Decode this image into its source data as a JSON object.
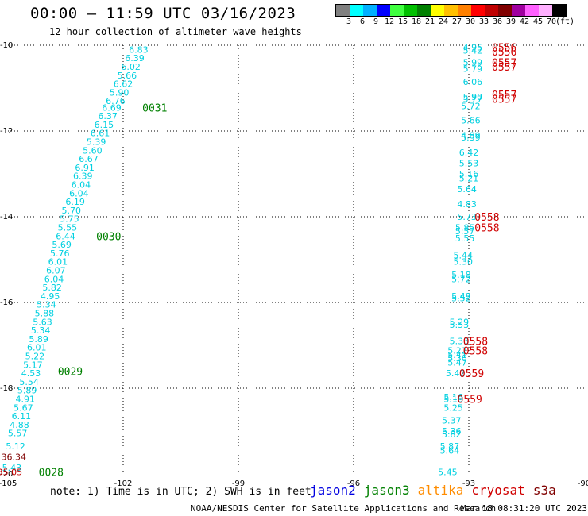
{
  "header": {
    "title": "00:00 — 11:59 UTC 03/16/2023",
    "subtitle": "12 hour collection of altimeter wave heights"
  },
  "legend": {
    "colors": [
      "#808080",
      "#00ffff",
      "#00b0ff",
      "#0000ff",
      "#40ff40",
      "#00c000",
      "#008000",
      "#ffff00",
      "#ffc000",
      "#ff8000",
      "#ff0000",
      "#c00000",
      "#800000",
      "#a000a0",
      "#ff60ff",
      "#ffb0ff",
      "#000000"
    ],
    "labels": [
      "3",
      "6",
      "9",
      "12",
      "15",
      "18",
      "21",
      "24",
      "27",
      "30",
      "33",
      "36",
      "39",
      "42",
      "45",
      "70",
      "(ft)"
    ]
  },
  "footer": {
    "note": "note: 1) Time is in UTC; 2) SWH is in feet",
    "satellites": [
      {
        "name": "jason2",
        "color": "#0000e0"
      },
      {
        "name": "jason3",
        "color": "#008000"
      },
      {
        "name": "altika",
        "color": "#ff8c00"
      },
      {
        "name": "cryosat",
        "color": "#d00000"
      },
      {
        "name": "s3a",
        "color": "#800000"
      }
    ],
    "credit": "NOAA/NESDIS Center for Satellite Applications and Research",
    "timestamp": "Mar 18 08:31:20 UTC 2023"
  },
  "chart_data": {
    "type": "scatter",
    "xlim": [
      -105,
      -90
    ],
    "ylim": [
      -20,
      -10
    ],
    "x_ticks": [
      -105,
      -102,
      -99,
      -96,
      -93,
      -90
    ],
    "x_tick_labels": [
      "-105",
      "-102",
      "-99",
      "-96",
      "-93",
      "-90"
    ],
    "y_ticks": [
      -10,
      -12,
      -14,
      -16,
      -18,
      -20
    ],
    "y_tick_labels": [
      "-10",
      "-12",
      "-14",
      "-16",
      "-18",
      "-20"
    ],
    "grid": true,
    "swh_points": [
      {
        "lon": -101.6,
        "lat": -10.1,
        "text": "6.83",
        "color": "#00d0e0"
      },
      {
        "lon": -101.7,
        "lat": -10.3,
        "text": "6.39",
        "color": "#00d0e0"
      },
      {
        "lon": -101.8,
        "lat": -10.5,
        "text": "6.02",
        "color": "#00d0e0"
      },
      {
        "lon": -101.9,
        "lat": -10.7,
        "text": "5.66",
        "color": "#00d0e0"
      },
      {
        "lon": -102.0,
        "lat": -10.9,
        "text": "6.62",
        "color": "#00d0e0"
      },
      {
        "lon": -102.1,
        "lat": -11.1,
        "text": "5.90",
        "color": "#00d0e0"
      },
      {
        "lon": -102.2,
        "lat": -11.3,
        "text": "6.76",
        "color": "#00d0e0"
      },
      {
        "lon": -102.3,
        "lat": -11.45,
        "text": "6.69",
        "color": "#00d0e0"
      },
      {
        "lon": -102.4,
        "lat": -11.65,
        "text": "6.37",
        "color": "#00d0e0"
      },
      {
        "lon": -102.5,
        "lat": -11.85,
        "text": "6.15",
        "color": "#00d0e0"
      },
      {
        "lon": -102.6,
        "lat": -12.05,
        "text": "6.61",
        "color": "#00d0e0"
      },
      {
        "lon": -102.7,
        "lat": -12.25,
        "text": "5.39",
        "color": "#00d0e0"
      },
      {
        "lon": -102.8,
        "lat": -12.45,
        "text": "5.60",
        "color": "#00d0e0"
      },
      {
        "lon": -102.9,
        "lat": -12.65,
        "text": "6.67",
        "color": "#00d0e0"
      },
      {
        "lon": -103.0,
        "lat": -12.85,
        "text": "6.91",
        "color": "#00d0e0"
      },
      {
        "lon": -103.05,
        "lat": -13.05,
        "text": "6.39",
        "color": "#00d0e0"
      },
      {
        "lon": -103.1,
        "lat": -13.25,
        "text": "6.04",
        "color": "#00d0e0"
      },
      {
        "lon": -103.15,
        "lat": -13.45,
        "text": "6.04",
        "color": "#00d0e0"
      },
      {
        "lon": -103.25,
        "lat": -13.65,
        "text": "6.19",
        "color": "#00d0e0"
      },
      {
        "lon": -103.35,
        "lat": -13.85,
        "text": "5.70",
        "color": "#00d0e0"
      },
      {
        "lon": -103.4,
        "lat": -14.05,
        "text": "5.75",
        "color": "#00d0e0"
      },
      {
        "lon": -103.45,
        "lat": -14.25,
        "text": "5.55",
        "color": "#00d0e0"
      },
      {
        "lon": -103.5,
        "lat": -14.45,
        "text": "6.44",
        "color": "#00d0e0"
      },
      {
        "lon": -103.6,
        "lat": -14.65,
        "text": "5.69",
        "color": "#00d0e0"
      },
      {
        "lon": -103.65,
        "lat": -14.85,
        "text": "5.76",
        "color": "#00d0e0"
      },
      {
        "lon": -103.7,
        "lat": -15.05,
        "text": "6.01",
        "color": "#00d0e0"
      },
      {
        "lon": -103.75,
        "lat": -15.25,
        "text": "6.07",
        "color": "#00d0e0"
      },
      {
        "lon": -103.8,
        "lat": -15.45,
        "text": "6.04",
        "color": "#00d0e0"
      },
      {
        "lon": -103.85,
        "lat": -15.65,
        "text": "5.82",
        "color": "#00d0e0"
      },
      {
        "lon": -103.9,
        "lat": -15.85,
        "text": "4.95",
        "color": "#00d0e0"
      },
      {
        "lon": -104.0,
        "lat": -16.05,
        "text": "5.34",
        "color": "#00d0e0"
      },
      {
        "lon": -104.05,
        "lat": -16.25,
        "text": "5.88",
        "color": "#00d0e0"
      },
      {
        "lon": -104.1,
        "lat": -16.45,
        "text": "5.63",
        "color": "#00d0e0"
      },
      {
        "lon": -104.15,
        "lat": -16.65,
        "text": "5.34",
        "color": "#00d0e0"
      },
      {
        "lon": -104.2,
        "lat": -16.85,
        "text": "5.89",
        "color": "#00d0e0"
      },
      {
        "lon": -104.25,
        "lat": -17.05,
        "text": "6.01",
        "color": "#00d0e0"
      },
      {
        "lon": -104.3,
        "lat": -17.25,
        "text": "5.22",
        "color": "#00d0e0"
      },
      {
        "lon": -104.35,
        "lat": -17.45,
        "text": "5.17",
        "color": "#00d0e0"
      },
      {
        "lon": -104.4,
        "lat": -17.65,
        "text": "4.53",
        "color": "#00d0e0"
      },
      {
        "lon": -104.45,
        "lat": -17.85,
        "text": "5.54",
        "color": "#00d0e0"
      },
      {
        "lon": -104.5,
        "lat": -18.05,
        "text": "5.89",
        "color": "#00d0e0"
      },
      {
        "lon": -104.55,
        "lat": -18.25,
        "text": "4.91",
        "color": "#00d0e0"
      },
      {
        "lon": -104.6,
        "lat": -18.45,
        "text": "5.67",
        "color": "#00d0e0"
      },
      {
        "lon": -104.65,
        "lat": -18.65,
        "text": "6.11",
        "color": "#00d0e0"
      },
      {
        "lon": -104.7,
        "lat": -18.85,
        "text": "4.88",
        "color": "#00d0e0"
      },
      {
        "lon": -104.75,
        "lat": -19.05,
        "text": "5.57",
        "color": "#00d0e0"
      },
      {
        "lon": -104.8,
        "lat": -19.35,
        "text": "5.12",
        "color": "#00d0e0"
      },
      {
        "lon": -104.85,
        "lat": -19.6,
        "text": "36.34",
        "color": "#800000"
      },
      {
        "lon": -104.9,
        "lat": -19.85,
        "text": "5.43",
        "color": "#00d0e0"
      },
      {
        "lon": -104.95,
        "lat": -19.95,
        "text": "35.05",
        "color": "#c00000"
      },
      {
        "lon": -92.9,
        "lat": -10.05,
        "text": "4.95",
        "color": "#00d0e0"
      },
      {
        "lon": -92.9,
        "lat": -10.12,
        "text": "5.42",
        "color": "#00d0e0"
      },
      {
        "lon": -92.9,
        "lat": -10.4,
        "text": "5.99",
        "color": "#00d0e0"
      },
      {
        "lon": -92.9,
        "lat": -10.55,
        "text": "5.79",
        "color": "#00d0e0"
      },
      {
        "lon": -92.9,
        "lat": -10.85,
        "text": "6.06",
        "color": "#00d0e0"
      },
      {
        "lon": -92.9,
        "lat": -11.2,
        "text": "5.90",
        "color": "#00d0e0"
      },
      {
        "lon": -92.9,
        "lat": -11.25,
        "text": "5.77",
        "color": "#00d0e0"
      },
      {
        "lon": -92.95,
        "lat": -11.42,
        "text": "5.72",
        "color": "#00d0e0"
      },
      {
        "lon": -92.95,
        "lat": -11.75,
        "text": "5.66",
        "color": "#00d0e0"
      },
      {
        "lon": -92.95,
        "lat": -12.1,
        "text": "4.89",
        "color": "#00d0e0"
      },
      {
        "lon": -92.95,
        "lat": -12.15,
        "text": "5.39",
        "color": "#00d0e0"
      },
      {
        "lon": -93.0,
        "lat": -12.5,
        "text": "6.42",
        "color": "#00d0e0"
      },
      {
        "lon": -93.0,
        "lat": -12.75,
        "text": "5.53",
        "color": "#00d0e0"
      },
      {
        "lon": -93.0,
        "lat": -13.0,
        "text": "5.16",
        "color": "#00d0e0"
      },
      {
        "lon": -93.0,
        "lat": -13.1,
        "text": "5.21",
        "color": "#00d0e0"
      },
      {
        "lon": -93.05,
        "lat": -13.35,
        "text": "5.64",
        "color": "#00d0e0"
      },
      {
        "lon": -93.05,
        "lat": -13.7,
        "text": "4.83",
        "color": "#00d0e0"
      },
      {
        "lon": -93.05,
        "lat": -14.0,
        "text": "5.73",
        "color": "#00d0e0"
      },
      {
        "lon": -93.1,
        "lat": -14.25,
        "text": "5.85",
        "color": "#00d0e0"
      },
      {
        "lon": -93.1,
        "lat": -14.33,
        "text": "5.57",
        "color": "#00d0e0"
      },
      {
        "lon": -93.1,
        "lat": -14.5,
        "text": "5.55",
        "color": "#00d0e0"
      },
      {
        "lon": -93.15,
        "lat": -14.9,
        "text": "5.44",
        "color": "#00d0e0"
      },
      {
        "lon": -93.15,
        "lat": -15.05,
        "text": "5.30",
        "color": "#00d0e0"
      },
      {
        "lon": -93.2,
        "lat": -15.35,
        "text": "5.18",
        "color": "#00d0e0"
      },
      {
        "lon": -93.2,
        "lat": -15.45,
        "text": "5.72",
        "color": "#00d0e0"
      },
      {
        "lon": -93.2,
        "lat": -15.85,
        "text": "5.49",
        "color": "#00d0e0"
      },
      {
        "lon": -93.2,
        "lat": -15.9,
        "text": "5.52",
        "color": "#00d0e0"
      },
      {
        "lon": -93.25,
        "lat": -16.45,
        "text": "5.29",
        "color": "#00d0e0"
      },
      {
        "lon": -93.25,
        "lat": -16.52,
        "text": "5.53",
        "color": "#00d0e0"
      },
      {
        "lon": -93.25,
        "lat": -16.9,
        "text": "5.33",
        "color": "#00d0e0"
      },
      {
        "lon": -93.3,
        "lat": -17.12,
        "text": "5.22",
        "color": "#00d0e0"
      },
      {
        "lon": -93.3,
        "lat": -17.22,
        "text": "5.41",
        "color": "#00d0e0"
      },
      {
        "lon": -93.3,
        "lat": -17.3,
        "text": "5.30",
        "color": "#00d0e0"
      },
      {
        "lon": -93.3,
        "lat": -17.4,
        "text": "5.47",
        "color": "#00d0e0"
      },
      {
        "lon": -93.35,
        "lat": -17.65,
        "text": "5.42",
        "color": "#00d0e0"
      },
      {
        "lon": -93.4,
        "lat": -18.2,
        "text": "5.16",
        "color": "#00d0e0"
      },
      {
        "lon": -93.4,
        "lat": -18.25,
        "text": "5.18",
        "color": "#00d0e0"
      },
      {
        "lon": -93.4,
        "lat": -18.45,
        "text": "5.25",
        "color": "#00d0e0"
      },
      {
        "lon": -93.45,
        "lat": -18.75,
        "text": "5.37",
        "color": "#00d0e0"
      },
      {
        "lon": -93.45,
        "lat": -19.0,
        "text": "5.36",
        "color": "#00d0e0"
      },
      {
        "lon": -93.45,
        "lat": -19.07,
        "text": "5.82",
        "color": "#00d0e0"
      },
      {
        "lon": -93.5,
        "lat": -19.35,
        "text": "5.87",
        "color": "#00d0e0"
      },
      {
        "lon": -93.5,
        "lat": -19.45,
        "text": "5.64",
        "color": "#00d0e0"
      },
      {
        "lon": -93.55,
        "lat": -19.95,
        "text": "5.45",
        "color": "#00d0e0"
      }
    ],
    "time_labels": [
      {
        "lon": -101.5,
        "lat": -11.45,
        "text": "0031",
        "color": "#008000"
      },
      {
        "lon": -102.7,
        "lat": -14.45,
        "text": "0030",
        "color": "#008000"
      },
      {
        "lon": -103.7,
        "lat": -17.6,
        "text": "0029",
        "color": "#008000"
      },
      {
        "lon": -104.2,
        "lat": -19.95,
        "text": "0028",
        "color": "#008000"
      },
      {
        "lon": -92.4,
        "lat": -10.05,
        "text": "0556",
        "color": "#d00000"
      },
      {
        "lon": -92.4,
        "lat": -10.15,
        "text": "0556",
        "color": "#d00000"
      },
      {
        "lon": -92.4,
        "lat": -10.4,
        "text": "0557",
        "color": "#d00000"
      },
      {
        "lon": -92.4,
        "lat": -10.5,
        "text": "0557",
        "color": "#d00000"
      },
      {
        "lon": -92.4,
        "lat": -11.15,
        "text": "0557",
        "color": "#d00000"
      },
      {
        "lon": -92.4,
        "lat": -11.25,
        "text": "0557",
        "color": "#d00000"
      },
      {
        "lon": -92.85,
        "lat": -14.0,
        "text": "0558",
        "color": "#d00000"
      },
      {
        "lon": -92.85,
        "lat": -14.25,
        "text": "0558",
        "color": "#d00000"
      },
      {
        "lon": -93.15,
        "lat": -16.9,
        "text": "0558",
        "color": "#d00000"
      },
      {
        "lon": -93.15,
        "lat": -17.12,
        "text": "0558",
        "color": "#d00000"
      },
      {
        "lon": -93.25,
        "lat": -17.65,
        "text": "0559",
        "color": "#d00000"
      },
      {
        "lon": -93.3,
        "lat": -18.25,
        "text": "0559",
        "color": "#d00000"
      }
    ]
  }
}
